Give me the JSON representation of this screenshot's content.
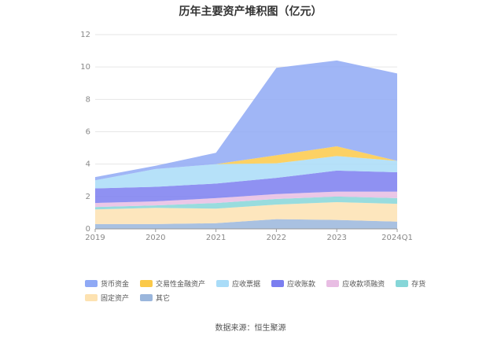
{
  "chart_data": {
    "type": "area",
    "title": "历年主要资产堆积图（亿元）",
    "categories": [
      "2019",
      "2020",
      "2021",
      "2022",
      "2023",
      "2024Q1"
    ],
    "ylim": [
      0,
      12
    ],
    "yticks": [
      0,
      2,
      4,
      6,
      8,
      10,
      12
    ],
    "grid": true,
    "legend_position": "bottom",
    "stack_order_bottom_to_top": [
      "其它",
      "固定资产",
      "存货",
      "应收款项融资",
      "应收账款",
      "应收票据",
      "交易性金融资产",
      "货币资金"
    ],
    "series": [
      {
        "name": "货币资金",
        "color": "#8fa9f5",
        "values": [
          0.2,
          0.2,
          0.7,
          5.4,
          5.3,
          5.4
        ]
      },
      {
        "name": "交易性金融资产",
        "color": "#fbc949",
        "values": [
          0.0,
          0.0,
          0.0,
          0.5,
          0.6,
          0.0
        ]
      },
      {
        "name": "应收票据",
        "color": "#a9dcf8",
        "values": [
          0.5,
          1.1,
          1.2,
          0.9,
          0.9,
          0.7
        ]
      },
      {
        "name": "应收账款",
        "color": "#7b7ef0",
        "values": [
          0.9,
          0.9,
          0.9,
          1.0,
          1.3,
          1.2
        ]
      },
      {
        "name": "应收款项融资",
        "color": "#e8bde3",
        "values": [
          0.25,
          0.25,
          0.3,
          0.3,
          0.3,
          0.4
        ]
      },
      {
        "name": "存货",
        "color": "#86d6d8",
        "values": [
          0.15,
          0.15,
          0.35,
          0.35,
          0.35,
          0.35
        ]
      },
      {
        "name": "固定资产",
        "color": "#fde2b1",
        "values": [
          0.9,
          1.0,
          0.9,
          0.9,
          1.1,
          1.1
        ]
      },
      {
        "name": "其它",
        "color": "#9ab6dc",
        "values": [
          0.3,
          0.3,
          0.35,
          0.6,
          0.55,
          0.45
        ]
      }
    ]
  },
  "source": "数据来源：恒生聚源"
}
